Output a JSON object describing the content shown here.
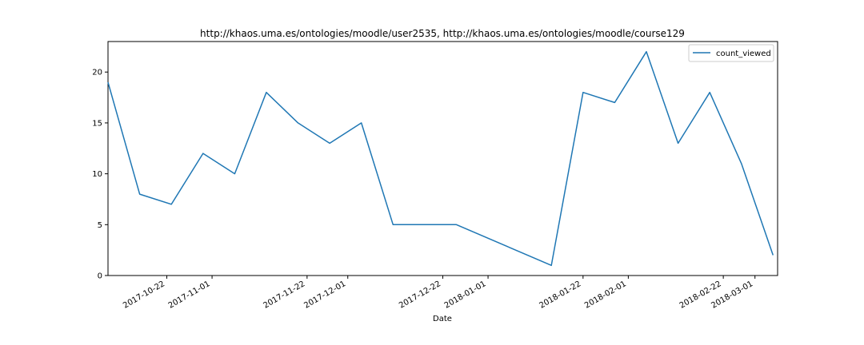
{
  "chart_data": {
    "type": "line",
    "title": "http://khaos.uma.es/ontologies/moodle/user2535, http://khaos.uma.es/ontologies/moodle/course129",
    "xlabel": "Date",
    "ylabel": "",
    "x_axis": "date",
    "xlim": [
      "2017-10-09",
      "2018-03-06"
    ],
    "ylim": [
      0,
      23
    ],
    "xticks": [
      "2017-10-22",
      "2017-11-01",
      "2017-11-22",
      "2017-12-01",
      "2017-12-22",
      "2018-01-01",
      "2018-01-22",
      "2018-02-01",
      "2018-02-22",
      "2018-03-01"
    ],
    "yticks": [
      0,
      5,
      10,
      15,
      20
    ],
    "grid": false,
    "legend": "top-right",
    "series": [
      {
        "name": "count_viewed",
        "color": "#1f77b4",
        "x": [
          "2017-10-09",
          "2017-10-16",
          "2017-10-23",
          "2017-10-30",
          "2017-11-06",
          "2017-11-13",
          "2017-11-20",
          "2017-11-27",
          "2017-12-04",
          "2017-12-11",
          "2017-12-18",
          "2017-12-25",
          "2018-01-15",
          "2018-01-22",
          "2018-01-29",
          "2018-02-05",
          "2018-02-12",
          "2018-02-19",
          "2018-02-26",
          "2018-03-05"
        ],
        "values": [
          19,
          8,
          7,
          12,
          10,
          18,
          15,
          13,
          15,
          5,
          5,
          5,
          1,
          18,
          17,
          22,
          13,
          18,
          11,
          2
        ]
      }
    ]
  }
}
